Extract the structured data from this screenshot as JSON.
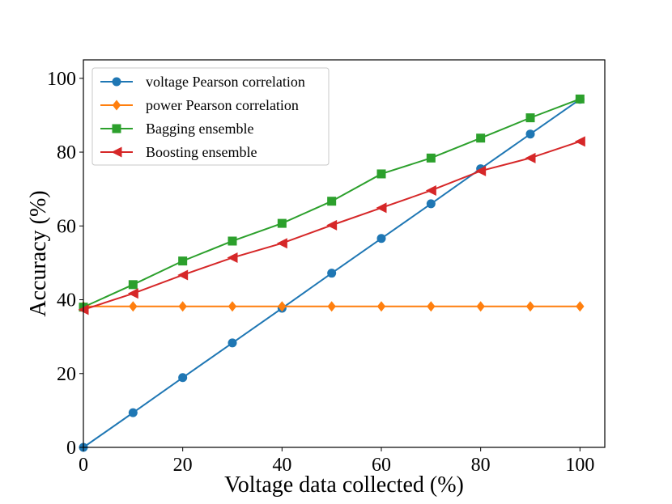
{
  "chart_data": {
    "type": "line",
    "title": "",
    "xlabel": "Voltage data collected (%)",
    "ylabel": "Accuracy (%)",
    "xlim": [
      0,
      105
    ],
    "ylim": [
      0,
      100
    ],
    "xticks": [
      0,
      20,
      40,
      60,
      80,
      100
    ],
    "yticks": [
      0,
      20,
      40,
      60,
      80,
      100
    ],
    "grid": false,
    "legend_position": "top-left",
    "x": [
      0,
      10,
      20,
      30,
      40,
      50,
      60,
      70,
      80,
      90,
      100
    ],
    "series": [
      {
        "name": "voltage Pearson correlation",
        "color": "#1f77b4",
        "marker": "circle",
        "values": [
          0,
          9.4,
          18.9,
          28.3,
          37.7,
          47.2,
          56.6,
          66.0,
          75.5,
          84.9,
          94.3
        ]
      },
      {
        "name": "power Pearson correlation",
        "color": "#ff7f0e",
        "marker": "diamond",
        "values": [
          38.2,
          38.2,
          38.2,
          38.2,
          38.2,
          38.2,
          38.2,
          38.2,
          38.2,
          38.2,
          38.2
        ]
      },
      {
        "name": "Bagging ensemble",
        "color": "#2ca02c",
        "marker": "square",
        "values": [
          38.0,
          44.1,
          50.5,
          55.9,
          60.7,
          66.7,
          74.1,
          78.4,
          83.8,
          89.3,
          94.4
        ]
      },
      {
        "name": "Boosting ensemble",
        "color": "#d62728",
        "marker": "triangle-left",
        "values": [
          37.3,
          41.7,
          46.7,
          51.4,
          55.3,
          60.2,
          64.9,
          69.6,
          74.9,
          78.4,
          82.9
        ]
      }
    ]
  }
}
